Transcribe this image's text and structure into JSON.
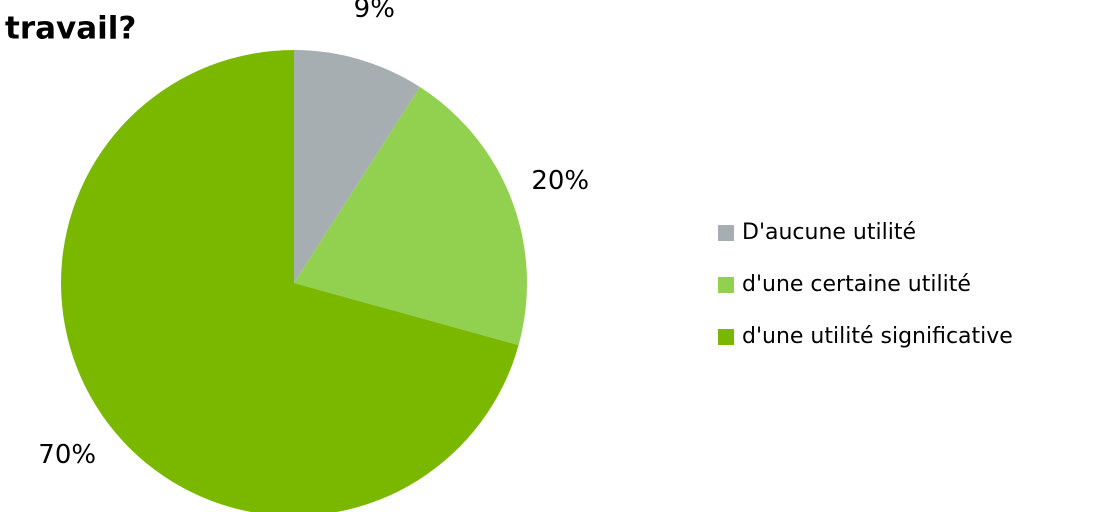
{
  "chart_data": {
    "type": "pie",
    "title": "travail?",
    "categories": [
      "D'aucune utilité",
      "d'une certaine utilité",
      "d'une utilité significative"
    ],
    "values": [
      9,
      20,
      70
    ],
    "value_labels": [
      "9%",
      "20%",
      "70%"
    ],
    "colors": [
      "#a7aeb2",
      "#92d050",
      "#7ab800"
    ],
    "legend": "right"
  }
}
